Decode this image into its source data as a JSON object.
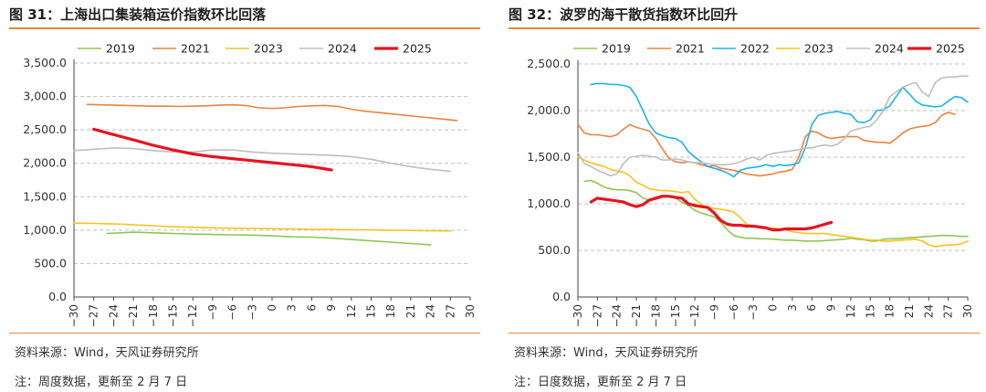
{
  "chart_data": [
    {
      "type": "line",
      "title": "图 31：上海出口集装箱运价指数环比回落",
      "xlabel": "",
      "ylabel": "",
      "xlim": [
        -30,
        30
      ],
      "ylim": [
        0,
        3500
      ],
      "xticks": [
        "-30",
        "-27",
        "-24",
        "-21",
        "-18",
        "-15",
        "-12",
        "-9",
        "-6",
        "-3",
        "0",
        "3",
        "6",
        "9",
        "12",
        "15",
        "18",
        "21",
        "24",
        "27",
        "30"
      ],
      "yticks": [
        "0.0",
        "500.0",
        "1,000.0",
        "1,500.0",
        "2,000.0",
        "2,500.0",
        "3,000.0",
        "3,500.0"
      ],
      "grid": "horizontal-dashed",
      "legend": "top",
      "series": [
        {
          "name": "2019",
          "color": "#8cc850",
          "width": 1.6,
          "x": [
            -25,
            -21,
            -18,
            -15,
            -12,
            -9,
            -6,
            -3,
            0,
            3,
            6,
            9,
            12,
            15,
            18,
            21,
            24
          ],
          "y": [
            950,
            970,
            960,
            950,
            940,
            935,
            930,
            925,
            915,
            900,
            895,
            880,
            860,
            840,
            820,
            800,
            780
          ]
        },
        {
          "name": "2021",
          "color": "#eb8240",
          "width": 1.6,
          "x": [
            -28,
            -26,
            -24,
            -22,
            -20,
            -18,
            -16,
            -14,
            -12,
            -10,
            -8,
            -6,
            -4,
            -2,
            0,
            2,
            4,
            6,
            8,
            10,
            12,
            14,
            16,
            18,
            20,
            22,
            24,
            26,
            28
          ],
          "y": [
            2880,
            2875,
            2870,
            2865,
            2860,
            2855,
            2855,
            2850,
            2855,
            2860,
            2870,
            2875,
            2865,
            2830,
            2820,
            2830,
            2850,
            2860,
            2865,
            2850,
            2810,
            2780,
            2760,
            2740,
            2720,
            2700,
            2680,
            2660,
            2640
          ]
        },
        {
          "name": "2023",
          "color": "#f5c31e",
          "width": 1.6,
          "x": [
            -31,
            -29,
            -27,
            -25,
            -23,
            -21,
            -19,
            -17,
            -15,
            -13,
            -11,
            -9,
            -7,
            -5,
            -3,
            -1,
            1,
            3,
            5,
            7,
            9,
            11,
            13,
            15,
            17,
            19,
            21,
            23,
            25,
            27
          ],
          "y": [
            1100,
            1105,
            1100,
            1095,
            1090,
            1080,
            1070,
            1060,
            1050,
            1045,
            1040,
            1035,
            1030,
            1028,
            1025,
            1022,
            1020,
            1018,
            1015,
            1012,
            1010,
            1008,
            1005,
            1003,
            1000,
            998,
            995,
            992,
            990,
            988
          ]
        },
        {
          "name": "2024",
          "color": "#bebebe",
          "width": 1.6,
          "x": [
            -30,
            -27,
            -24,
            -21,
            -18,
            -15,
            -12,
            -9,
            -6,
            -3,
            0,
            3,
            6,
            9,
            12,
            15,
            18,
            21,
            24,
            27
          ],
          "y": [
            2190,
            2210,
            2230,
            2220,
            2190,
            2170,
            2170,
            2200,
            2200,
            2170,
            2150,
            2140,
            2130,
            2120,
            2100,
            2060,
            2000,
            1950,
            1910,
            1880
          ]
        },
        {
          "name": "2025",
          "color": "#e6141e",
          "width": 3.2,
          "x": [
            -27,
            -24,
            -21,
            -18,
            -15,
            -12,
            -9,
            -6,
            -3,
            0,
            3,
            6,
            9
          ],
          "y": [
            2510,
            2430,
            2350,
            2270,
            2200,
            2140,
            2100,
            2070,
            2040,
            2010,
            1980,
            1950,
            1900
          ]
        }
      ]
    },
    {
      "type": "line",
      "title": "图 32：波罗的海干散货指数环比回升",
      "xlabel": "",
      "ylabel": "",
      "xlim": [
        -30,
        30
      ],
      "ylim": [
        0,
        2500
      ],
      "xticks": [
        "-30",
        "-27",
        "-24",
        "-21",
        "-18",
        "-15",
        "-12",
        "-9",
        "-6",
        "-3",
        "0",
        "3",
        "6",
        "9",
        "12",
        "15",
        "18",
        "21",
        "24",
        "27",
        "30"
      ],
      "yticks": [
        "0.0",
        "500.0",
        "1,000.0",
        "1,500.0",
        "2,000.0",
        "2,500.0"
      ],
      "grid": "horizontal-dashed",
      "legend": "top",
      "series": [
        {
          "name": "2019",
          "color": "#8cc850",
          "width": 1.6,
          "x": [
            -29,
            -28,
            -27,
            -26,
            -25,
            -24,
            -23,
            -22,
            -21,
            -20,
            -19,
            -18,
            -17,
            -16,
            -15,
            -14,
            -13,
            -12,
            -11,
            -10,
            -9,
            -8,
            -7,
            -6,
            -5,
            -4,
            -3,
            -2,
            -1,
            0,
            1,
            2,
            3,
            4,
            5,
            6,
            7,
            8,
            9,
            10,
            11,
            12,
            13,
            14,
            15,
            16,
            17,
            18,
            19,
            20,
            21,
            22,
            23,
            24,
            25,
            26,
            27,
            28,
            29,
            30
          ],
          "y": [
            1240,
            1250,
            1220,
            1180,
            1160,
            1150,
            1150,
            1140,
            1120,
            1060,
            1040,
            1070,
            1090,
            1085,
            1060,
            1020,
            980,
            930,
            900,
            880,
            860,
            800,
            720,
            660,
            640,
            630,
            630,
            625,
            625,
            620,
            615,
            610,
            610,
            605,
            600,
            600,
            600,
            605,
            610,
            615,
            620,
            630,
            620,
            615,
            600,
            600,
            620,
            625,
            625,
            630,
            635,
            640,
            645,
            650,
            655,
            660,
            660,
            655,
            650,
            650
          ]
        },
        {
          "name": "2021",
          "color": "#eb8240",
          "width": 1.6,
          "x": [
            -30,
            -29,
            -28,
            -27,
            -26,
            -25,
            -24,
            -23,
            -22,
            -21,
            -20,
            -19,
            -18,
            -17,
            -16,
            -15,
            -14,
            -13,
            -12,
            -11,
            -10,
            -9,
            -8,
            -7,
            -6,
            -5,
            -4,
            -3,
            -2,
            -1,
            0,
            1,
            2,
            3,
            4,
            5,
            6,
            7,
            8,
            9,
            10,
            11,
            12,
            13,
            14,
            15,
            16,
            17,
            18,
            19,
            20,
            21,
            22,
            23,
            24,
            25,
            26,
            27,
            28
          ],
          "y": [
            1850,
            1760,
            1740,
            1740,
            1730,
            1720,
            1740,
            1800,
            1850,
            1820,
            1800,
            1780,
            1700,
            1590,
            1490,
            1450,
            1440,
            1450,
            1440,
            1420,
            1400,
            1410,
            1380,
            1370,
            1360,
            1340,
            1320,
            1310,
            1300,
            1310,
            1320,
            1340,
            1350,
            1370,
            1500,
            1720,
            1780,
            1760,
            1720,
            1700,
            1710,
            1720,
            1720,
            1720,
            1680,
            1670,
            1660,
            1660,
            1650,
            1700,
            1760,
            1800,
            1820,
            1830,
            1840,
            1870,
            1950,
            1980,
            1960
          ]
        },
        {
          "name": "2022",
          "color": "#1eb4e6",
          "width": 1.6,
          "x": [
            -28,
            -27,
            -26,
            -25,
            -24,
            -23,
            -22,
            -21,
            -20,
            -19,
            -18,
            -17,
            -16,
            -15,
            -14,
            -13,
            -12,
            -11,
            -10,
            -9,
            -8,
            -7,
            -6,
            -5,
            -4,
            -3,
            -2,
            -1,
            0,
            1,
            2,
            3,
            4,
            5,
            6,
            7,
            8,
            9,
            10,
            11,
            12,
            13,
            14,
            15,
            16,
            17,
            18,
            19,
            20,
            21,
            22,
            23,
            24,
            25,
            26,
            27,
            28,
            29,
            30
          ],
          "y": [
            2280,
            2290,
            2290,
            2280,
            2280,
            2270,
            2250,
            2150,
            2000,
            1850,
            1760,
            1730,
            1710,
            1700,
            1660,
            1560,
            1500,
            1450,
            1400,
            1380,
            1360,
            1330,
            1290,
            1360,
            1380,
            1390,
            1400,
            1420,
            1400,
            1420,
            1410,
            1420,
            1440,
            1600,
            1850,
            1950,
            1970,
            1980,
            1990,
            1970,
            1960,
            1880,
            1870,
            1900,
            2000,
            2010,
            2050,
            2150,
            2250,
            2180,
            2100,
            2060,
            2050,
            2040,
            2050,
            2100,
            2150,
            2140,
            2090
          ]
        },
        {
          "name": "2023",
          "color": "#f5c31e",
          "width": 1.6,
          "x": [
            -30,
            -29,
            -28,
            -27,
            -26,
            -25,
            -24,
            -23,
            -22,
            -21,
            -20,
            -19,
            -18,
            -17,
            -16,
            -15,
            -14,
            -13,
            -12,
            -11,
            -10,
            -9,
            -8,
            -7,
            -6,
            -5,
            -4,
            -3,
            -2,
            -1,
            0,
            1,
            2,
            3,
            4,
            5,
            6,
            7,
            8,
            9,
            10,
            11,
            12,
            13,
            14,
            15,
            16,
            17,
            18,
            19,
            20,
            21,
            22,
            23,
            24,
            25,
            26,
            27,
            28,
            29,
            30
          ],
          "y": [
            1500,
            1470,
            1440,
            1420,
            1400,
            1370,
            1350,
            1340,
            1300,
            1230,
            1200,
            1160,
            1150,
            1140,
            1140,
            1130,
            1120,
            1130,
            1050,
            990,
            960,
            950,
            940,
            930,
            910,
            850,
            780,
            760,
            750,
            740,
            740,
            730,
            720,
            700,
            690,
            680,
            680,
            680,
            680,
            670,
            660,
            650,
            640,
            630,
            620,
            610,
            610,
            600,
            600,
            605,
            610,
            615,
            620,
            600,
            560,
            540,
            550,
            560,
            560,
            570,
            600
          ]
        },
        {
          "name": "2024",
          "color": "#bebebe",
          "width": 1.6,
          "x": [
            -30,
            -29,
            -28,
            -27,
            -26,
            -25,
            -24,
            -23,
            -22,
            -21,
            -20,
            -19,
            -18,
            -17,
            -16,
            -15,
            -14,
            -13,
            -12,
            -11,
            -10,
            -9,
            -8,
            -7,
            -6,
            -5,
            -4,
            -3,
            -2,
            -1,
            0,
            1,
            2,
            3,
            4,
            5,
            6,
            7,
            8,
            9,
            10,
            11,
            12,
            13,
            14,
            15,
            16,
            17,
            18,
            19,
            20,
            21,
            22,
            23,
            24,
            25,
            26,
            27,
            28,
            29,
            30
          ],
          "y": [
            1550,
            1430,
            1400,
            1360,
            1330,
            1300,
            1320,
            1430,
            1500,
            1510,
            1520,
            1510,
            1500,
            1470,
            1470,
            1480,
            1470,
            1450,
            1440,
            1440,
            1430,
            1420,
            1420,
            1420,
            1430,
            1450,
            1480,
            1500,
            1470,
            1520,
            1540,
            1550,
            1560,
            1570,
            1580,
            1600,
            1600,
            1620,
            1630,
            1620,
            1640,
            1700,
            1780,
            1800,
            1820,
            1830,
            1900,
            2000,
            2150,
            2200,
            2250,
            2280,
            2300,
            2200,
            2150,
            2300,
            2350,
            2360,
            2360,
            2370,
            2370
          ]
        },
        {
          "name": "2025",
          "color": "#e6141e",
          "width": 3.2,
          "x": [
            -28,
            -27,
            -26,
            -25,
            -24,
            -23,
            -22,
            -21,
            -20,
            -19,
            -18,
            -17,
            -16,
            -15,
            -14,
            -13,
            -12,
            -11,
            -10,
            -9,
            -8,
            -7,
            -6,
            -5,
            -4,
            -3,
            -2,
            -1,
            0,
            1,
            2,
            3,
            4,
            5,
            6,
            7,
            8,
            9
          ],
          "y": [
            1020,
            1060,
            1050,
            1040,
            1030,
            1020,
            990,
            970,
            990,
            1040,
            1060,
            1080,
            1080,
            1070,
            1060,
            1000,
            980,
            970,
            960,
            900,
            820,
            780,
            770,
            770,
            760,
            760,
            750,
            740,
            720,
            720,
            730,
            730,
            730,
            730,
            740,
            760,
            780,
            800
          ]
        }
      ]
    }
  ],
  "footer_left": {
    "source": "资料来源：Wind，天风证券研究所",
    "note": "注：周度数据，更新至 2 月 7 日"
  },
  "footer_right": {
    "source": "资料来源：Wind，天风证券研究所",
    "note": "注：日度数据，更新至 2 月 7 日"
  }
}
